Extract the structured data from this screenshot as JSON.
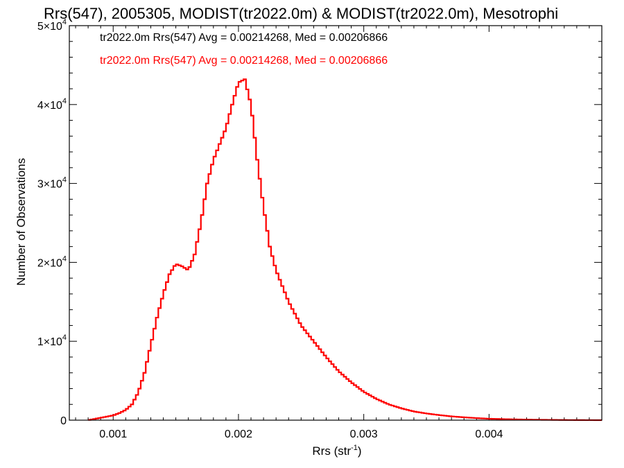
{
  "chart_data": {
    "type": "line",
    "title": "Rrs(547), 2005305, MODIST(tr2022.0m) & MODIST(tr2022.0m), Mesotrophi",
    "xlabel": "Rrs (str",
    "xlabel_sup": "-1",
    "xlabel_close": ")",
    "ylabel": "Number of Observations",
    "xlim": [
      0.00065,
      0.0049
    ],
    "ylim": [
      0,
      50000
    ],
    "x_ticks": [
      {
        "value": 0.001,
        "label": "0.001"
      },
      {
        "value": 0.002,
        "label": "0.002"
      },
      {
        "value": 0.003,
        "label": "0.003"
      },
      {
        "value": 0.004,
        "label": "0.004"
      }
    ],
    "y_ticks": [
      {
        "value": 0,
        "label": "0",
        "exp": ""
      },
      {
        "value": 10000,
        "label": "1×10",
        "exp": "4"
      },
      {
        "value": 20000,
        "label": "2×10",
        "exp": "4"
      },
      {
        "value": 30000,
        "label": "3×10",
        "exp": "4"
      },
      {
        "value": 40000,
        "label": "4×10",
        "exp": "4"
      },
      {
        "value": 50000,
        "label": "5×10",
        "exp": "4"
      }
    ],
    "legend": [
      {
        "text": "tr2022.0m Rrs(547) Avg = 0.00214268, Med = 0.00206866",
        "color": "#000000"
      },
      {
        "text": "tr2022.0m Rrs(547) Avg = 0.00214268, Med = 0.00206866",
        "color": "#ff0000"
      }
    ],
    "step": 2e-05,
    "series": [
      {
        "color": "#000000",
        "x": [
          0.0008,
          0.0009,
          0.001,
          0.00105,
          0.0011,
          0.00115,
          0.0012,
          0.00125,
          0.0013,
          0.00135,
          0.0014,
          0.00145,
          0.0015,
          0.00155,
          0.0016,
          0.00165,
          0.0017,
          0.00175,
          0.0018,
          0.00185,
          0.0019,
          0.00195,
          0.002,
          0.00205,
          0.0021,
          0.00215,
          0.0022,
          0.00225,
          0.0023,
          0.00235,
          0.0024,
          0.00245,
          0.0025,
          0.0026,
          0.0027,
          0.0028,
          0.0029,
          0.003,
          0.0031,
          0.0032,
          0.0033,
          0.0034,
          0.0035,
          0.0036,
          0.0037,
          0.0038,
          0.0039,
          0.004,
          0.0042,
          0.0044,
          0.0046,
          0.0048,
          0.0049
        ],
        "y": [
          0,
          300,
          600,
          900,
          1300,
          2000,
          3500,
          6000,
          9500,
          13000,
          16000,
          18500,
          19800,
          19500,
          19000,
          21000,
          25000,
          30000,
          33000,
          35000,
          37000,
          40000,
          42800,
          43200,
          40000,
          33000,
          27000,
          22000,
          19000,
          17000,
          15000,
          13500,
          12000,
          10000,
          8000,
          6200,
          4800,
          3600,
          2700,
          2000,
          1500,
          1100,
          850,
          650,
          480,
          360,
          260,
          180,
          100,
          50,
          20,
          5,
          0
        ]
      },
      {
        "color": "#ff0000",
        "x": [
          0.0008,
          0.0009,
          0.001,
          0.00105,
          0.0011,
          0.00115,
          0.0012,
          0.00125,
          0.0013,
          0.00135,
          0.0014,
          0.00145,
          0.0015,
          0.00155,
          0.0016,
          0.00165,
          0.0017,
          0.00175,
          0.0018,
          0.00185,
          0.0019,
          0.00195,
          0.002,
          0.00205,
          0.0021,
          0.00215,
          0.0022,
          0.00225,
          0.0023,
          0.00235,
          0.0024,
          0.00245,
          0.0025,
          0.0026,
          0.0027,
          0.0028,
          0.0029,
          0.003,
          0.0031,
          0.0032,
          0.0033,
          0.0034,
          0.0035,
          0.0036,
          0.0037,
          0.0038,
          0.0039,
          0.004,
          0.0042,
          0.0044,
          0.0046,
          0.0048,
          0.0049
        ],
        "y": [
          0,
          300,
          600,
          900,
          1300,
          2000,
          3500,
          6000,
          9500,
          13000,
          16000,
          18500,
          19800,
          19500,
          19000,
          21000,
          25000,
          30000,
          33000,
          35000,
          37000,
          40000,
          42800,
          43200,
          40000,
          33000,
          27000,
          22000,
          19000,
          17000,
          15000,
          13500,
          12000,
          10000,
          8000,
          6200,
          4800,
          3600,
          2700,
          2000,
          1500,
          1100,
          850,
          650,
          480,
          360,
          260,
          180,
          100,
          50,
          20,
          5,
          0
        ]
      }
    ]
  }
}
